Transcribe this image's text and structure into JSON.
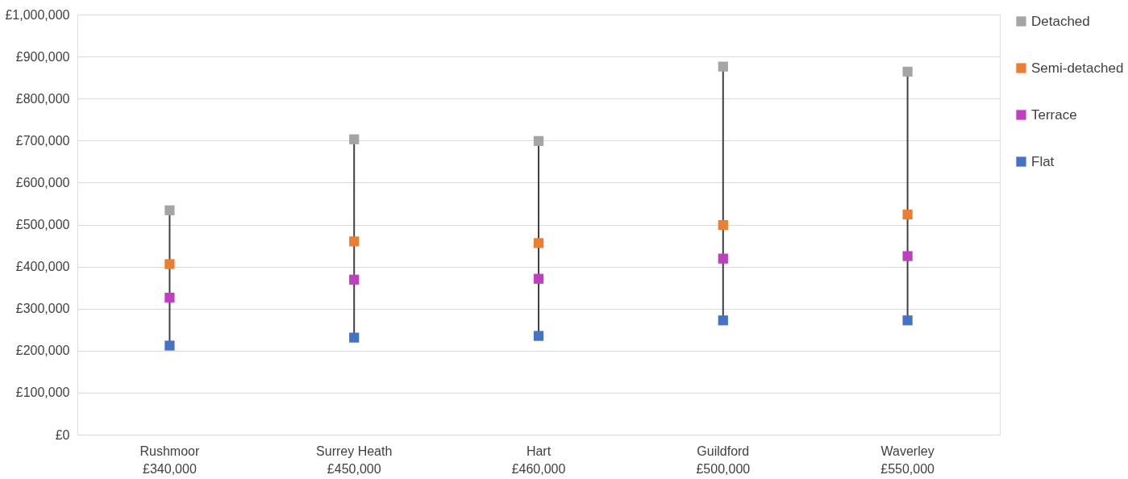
{
  "chart_data": {
    "type": "scatter",
    "categories": [
      "Rushmoor\n£340,000",
      "Surrey Heath\n£450,000",
      "Hart\n£460,000",
      "Guildford\n£500,000",
      "Waverley\n£550,000"
    ],
    "series": [
      {
        "name": "Detached",
        "color": "#a5a5a5",
        "values": [
          534000,
          703000,
          699000,
          876000,
          864000
        ]
      },
      {
        "name": "Semi-detached",
        "color": "#ed7d31",
        "values": [
          406000,
          460000,
          456000,
          499000,
          524000
        ]
      },
      {
        "name": "Terrace",
        "color": "#bf40bf",
        "values": [
          326000,
          369000,
          371000,
          419000,
          425000
        ]
      },
      {
        "name": "Flat",
        "color": "#4472c4",
        "values": [
          212000,
          231000,
          235000,
          272000,
          272000
        ]
      }
    ],
    "ylim": [
      0,
      1000000
    ],
    "yticks": [
      {
        "value": 0,
        "label": "£0"
      },
      {
        "value": 100000,
        "label": "£100,000"
      },
      {
        "value": 200000,
        "label": "£200,000"
      },
      {
        "value": 300000,
        "label": "£300,000"
      },
      {
        "value": 400000,
        "label": "£400,000"
      },
      {
        "value": 500000,
        "label": "£500,000"
      },
      {
        "value": 600000,
        "label": "£600,000"
      },
      {
        "value": 700000,
        "label": "£700,000"
      },
      {
        "value": 800000,
        "label": "£800,000"
      },
      {
        "value": 900000,
        "label": "£900,000"
      },
      {
        "value": 1000000,
        "label": "£1,000,000"
      }
    ],
    "grid": "y",
    "legend": "right",
    "marker": "square"
  }
}
